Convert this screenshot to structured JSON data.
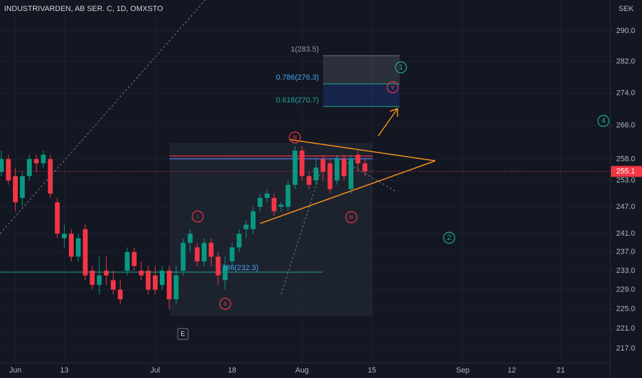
{
  "chart_data": {
    "type": "candlestick",
    "title": "INDUSTRIVARDEN, AB SER. C, 1D, OMXSTO",
    "y_unit": "SEK",
    "log_scale": true,
    "grid": true,
    "up_color": "#089981",
    "down_color": "#f23645",
    "ylim": [
      214.2,
      298.3
    ],
    "yticks": [
      {
        "value": 290,
        "label": "290.0"
      },
      {
        "value": 282,
        "label": "282.0"
      },
      {
        "value": 274,
        "label": "274.0"
      },
      {
        "value": 266,
        "label": "266.0"
      },
      {
        "value": 258,
        "label": "258.0"
      },
      {
        "value": 253,
        "label": "253.0"
      },
      {
        "value": 247,
        "label": "247.0"
      },
      {
        "value": 241,
        "label": "241.0"
      },
      {
        "value": 237,
        "label": "237.0"
      },
      {
        "value": 233,
        "label": "233.0"
      },
      {
        "value": 229,
        "label": "229.0"
      },
      {
        "value": 225,
        "label": "225.0"
      },
      {
        "value": 221,
        "label": "221.0"
      },
      {
        "value": 217,
        "label": "217.0"
      }
    ],
    "categories": [
      null,
      null,
      "Jun",
      null,
      null,
      null,
      null,
      null,
      null,
      "13",
      null,
      null,
      null,
      null,
      null,
      null,
      null,
      null,
      null,
      null,
      null,
      null,
      "Jul",
      null,
      null,
      null,
      null,
      null,
      null,
      null,
      null,
      null,
      null,
      "18",
      null,
      null,
      null,
      null,
      null,
      null,
      null,
      null,
      null,
      "Aug",
      null,
      null,
      null,
      null,
      null,
      null,
      null,
      null,
      null,
      "15",
      null,
      null,
      null,
      null,
      null,
      null,
      null,
      null,
      null,
      null,
      null,
      null,
      "Sep",
      null,
      null,
      null,
      null,
      null,
      null,
      "12",
      null,
      null,
      null,
      null,
      null,
      null,
      "21"
    ],
    "open": [
      255,
      258,
      254,
      249,
      254,
      258,
      257,
      258,
      248,
      240,
      241,
      236,
      242,
      233,
      230,
      233,
      231,
      229,
      233,
      237,
      233,
      233,
      232,
      230,
      233,
      227,
      233,
      239,
      238,
      235,
      239,
      236,
      231,
      235,
      238,
      242,
      242,
      247,
      249,
      249,
      247,
      247,
      252,
      260,
      254,
      253,
      258,
      257,
      253,
      258,
      251,
      259,
      257,
      null,
      null,
      null,
      null,
      null,
      null,
      null,
      null,
      null,
      null,
      null,
      null,
      null,
      null,
      null,
      null,
      null,
      null,
      null,
      null,
      null,
      null,
      null,
      null,
      null,
      null,
      null,
      null
    ],
    "high": [
      260,
      259,
      256,
      255,
      259,
      259,
      260,
      259,
      249,
      243,
      242,
      241,
      243,
      234,
      236,
      236,
      233,
      231,
      238,
      238,
      235,
      234,
      234,
      234,
      234,
      234,
      240,
      242,
      239,
      240,
      240,
      237,
      236,
      239,
      242,
      244,
      247,
      250,
      251,
      250,
      248,
      253,
      261,
      261,
      255,
      258,
      259,
      258,
      259,
      259,
      259,
      260,
      258,
      null,
      null,
      null,
      null,
      null,
      null,
      null,
      null,
      null,
      null,
      null,
      null,
      null,
      null,
      null,
      null,
      null,
      null,
      null,
      null,
      null,
      null,
      null,
      null,
      null,
      null,
      null,
      null
    ],
    "low": [
      254,
      252,
      246,
      247,
      253,
      255,
      256,
      249,
      240,
      238,
      235,
      235,
      231,
      229,
      228,
      230,
      228,
      226,
      232,
      233,
      231,
      228,
      228,
      229,
      225,
      226,
      232,
      237,
      234,
      234,
      234,
      230,
      229,
      234,
      237,
      240,
      241,
      246,
      248,
      245,
      246,
      246,
      251,
      253,
      251,
      252,
      253,
      250,
      252,
      253,
      250,
      255,
      254,
      null,
      null,
      null,
      null,
      null,
      null,
      null,
      null,
      null,
      null,
      null,
      null,
      null,
      null,
      null,
      null,
      null,
      null,
      null,
      null,
      null,
      null,
      null,
      null,
      null,
      null,
      null,
      null
    ],
    "close": [
      258,
      253,
      248,
      254,
      258,
      257,
      259,
      250,
      241,
      241,
      236,
      240,
      232,
      230,
      232,
      232,
      229,
      227,
      237,
      234,
      232,
      229,
      229,
      233,
      227,
      232,
      239,
      241,
      235,
      239,
      236,
      232,
      234,
      238,
      241,
      243,
      246,
      249,
      250,
      246,
      247.5,
      252,
      260,
      254,
      252,
      256,
      255,
      251,
      258,
      254,
      258,
      257,
      255.1,
      null,
      null,
      null,
      null,
      null,
      null,
      null,
      null,
      null,
      null,
      null,
      null,
      null,
      null,
      null,
      null,
      null,
      null,
      null,
      null,
      null,
      null,
      null,
      null,
      null,
      null,
      null,
      null
    ],
    "fib_labels": [
      "1(283.5)",
      "0.786(276.3)",
      "0.618(270.7)",
      "786(232.3)"
    ],
    "wave_labels": [
      "iii",
      "i",
      "ii",
      "iv",
      "v",
      "1",
      "2",
      "4"
    ],
    "button_label": "E"
  }
}
